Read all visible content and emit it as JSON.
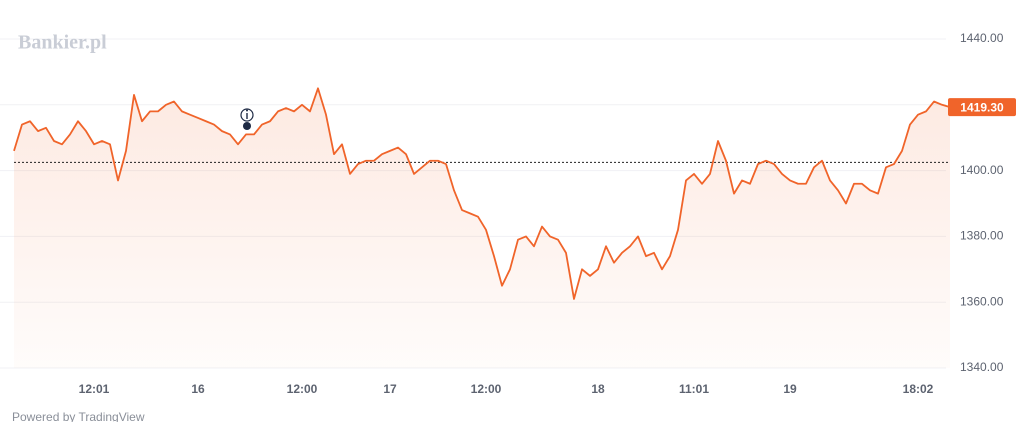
{
  "chart_data": {
    "type": "line",
    "watermark": "Bankier.pl",
    "footer": "Powered by TradingView",
    "color": "#f0642a",
    "reference_line": 1402.5,
    "ylim": [
      1340,
      1440
    ],
    "yticks": [
      {
        "value": 1340,
        "label": "1340.00"
      },
      {
        "value": 1360,
        "label": "1360.00"
      },
      {
        "value": 1380,
        "label": "1380.00"
      },
      {
        "value": 1400,
        "label": "1400.00"
      },
      {
        "value": 1420,
        "label": "1420.00"
      },
      {
        "value": 1440,
        "label": "1440.00"
      }
    ],
    "grid": true,
    "categories": [
      null,
      null,
      null,
      null,
      null,
      null,
      null,
      null,
      null,
      null,
      "12:01",
      null,
      null,
      null,
      null,
      null,
      null,
      null,
      null,
      null,
      null,
      null,
      null,
      "16",
      null,
      null,
      null,
      null,
      null,
      null,
      null,
      null,
      null,
      null,
      null,
      null,
      "12:00",
      null,
      null,
      null,
      null,
      null,
      null,
      null,
      null,
      null,
      null,
      "17",
      null,
      null,
      null,
      null,
      null,
      null,
      null,
      null,
      null,
      null,
      null,
      "12:00",
      null,
      null,
      null,
      null,
      null,
      null,
      null,
      null,
      null,
      null,
      null,
      null,
      null,
      "18",
      null,
      null,
      null,
      null,
      null,
      null,
      null,
      null,
      null,
      null,
      null,
      "11:01",
      null,
      null,
      null,
      null,
      null,
      null,
      null,
      null,
      null,
      null,
      null,
      "19",
      null,
      null,
      null,
      null,
      null,
      null,
      null,
      null,
      null,
      null,
      null,
      null,
      null,
      null,
      null,
      "18:02",
      null,
      null,
      null,
      null
    ],
    "values": [
      1406,
      1414,
      1415,
      1412,
      1413,
      1409,
      1408,
      1411,
      1415,
      1412,
      1408,
      1409,
      1408,
      1397,
      1406,
      1423,
      1415,
      1418,
      1418,
      1420,
      1421,
      1418,
      1417,
      1416,
      1415,
      1414,
      1412,
      1411,
      1408,
      1411,
      1411,
      1414,
      1415,
      1418,
      1419,
      1418,
      1420,
      1418,
      1425,
      1417,
      1405,
      1408,
      1399,
      1402,
      1403,
      1403,
      1405,
      1406,
      1407,
      1405,
      1399,
      1401,
      1403,
      1403,
      1402,
      1394,
      1388,
      1387,
      1386,
      1382,
      1374,
      1365,
      1370,
      1379,
      1380,
      1377,
      1383,
      1380,
      1379,
      1375,
      1361,
      1370,
      1368,
      1370,
      1377,
      1372,
      1375,
      1377,
      1380,
      1374,
      1375,
      1370,
      1374,
      1382,
      1397,
      1399,
      1396,
      1399,
      1409,
      1403,
      1393,
      1397,
      1396,
      1402,
      1403,
      1402,
      1399,
      1397,
      1396,
      1396,
      1401,
      1403,
      1397,
      1394,
      1390,
      1396,
      1396,
      1394,
      1393,
      1401,
      1402,
      1406,
      1414,
      1417,
      1418,
      1421,
      1420,
      1419.3
    ],
    "value_labels": [
      null,
      null,
      null,
      null,
      null,
      null,
      null,
      null,
      null,
      null,
      null,
      null,
      null,
      null,
      null,
      null,
      null,
      null,
      null,
      null,
      null,
      null,
      null,
      null,
      null,
      null,
      null,
      null,
      null,
      null,
      null,
      null,
      null,
      null,
      null,
      null,
      null,
      null,
      null,
      null,
      null,
      null,
      null,
      null,
      null,
      null,
      null,
      null,
      null,
      null,
      null,
      null,
      null,
      null,
      null,
      null,
      null,
      null,
      null,
      null,
      null,
      null,
      null,
      null,
      null,
      null,
      null,
      null,
      null,
      null,
      null,
      null,
      null,
      null,
      null,
      null,
      null,
      null,
      null,
      null,
      null,
      null,
      null,
      null,
      null,
      null,
      null,
      null,
      null,
      null,
      null,
      null,
      null,
      null,
      null,
      null,
      null,
      null,
      null,
      null,
      null,
      null,
      null,
      null,
      null,
      null,
      null,
      null,
      null,
      null,
      null,
      null,
      null,
      null,
      null,
      null,
      null,
      "1419.30"
    ]
  }
}
